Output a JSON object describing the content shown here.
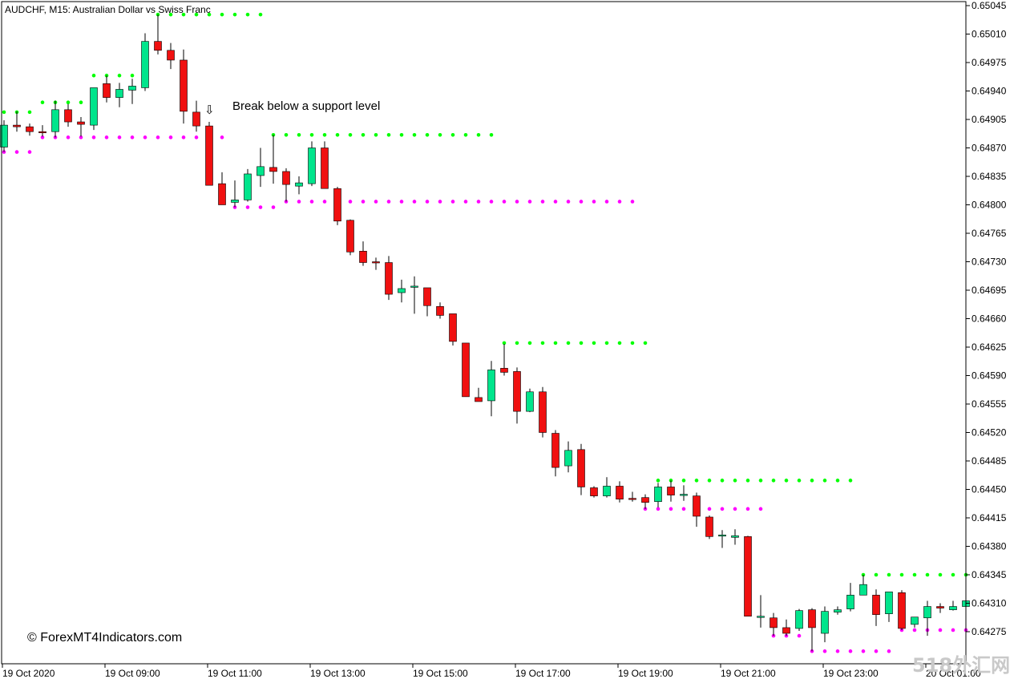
{
  "window": {
    "symbol_caption": "AUDCHF, M15:  Australian Dollar vs Swiss Franc",
    "annotation": "Break below a support level",
    "arrow_glyph": "⇩",
    "watermark": "© ForexMT4Indicators.com",
    "corner_brand": "518外汇网"
  },
  "colors": {
    "bull": "#00E58C",
    "bear": "#F01010",
    "wick": "#000000",
    "resistance": "#00FF00",
    "support": "#FF00FF",
    "frame": "#000000"
  },
  "chart_data": {
    "type": "candlestick",
    "ylim": [
      0.6425,
      0.6505
    ],
    "y_ticks": [
      "0.65045",
      "0.65010",
      "0.64975",
      "0.64940",
      "0.64905",
      "0.64870",
      "0.64835",
      "0.64800",
      "0.64765",
      "0.64730",
      "0.64695",
      "0.64660",
      "0.64625",
      "0.64590",
      "0.64555",
      "0.64520",
      "0.64485",
      "0.64450",
      "0.64415",
      "0.64380",
      "0.64345",
      "0.64310",
      "0.64275"
    ],
    "x_ticks": [
      {
        "bar": 0,
        "label": "19 Oct 2020"
      },
      {
        "bar": 8,
        "label": "19 Oct 09:00"
      },
      {
        "bar": 16,
        "label": "19 Oct 11:00"
      },
      {
        "bar": 24,
        "label": "19 Oct 13:00"
      },
      {
        "bar": 32,
        "label": "19 Oct 15:00"
      },
      {
        "bar": 40,
        "label": "19 Oct 17:00"
      },
      {
        "bar": 48,
        "label": "19 Oct 19:00"
      },
      {
        "bar": 56,
        "label": "19 Oct 21:00"
      },
      {
        "bar": 64,
        "label": "19 Oct 23:00"
      },
      {
        "bar": 72,
        "label": "20 Oct 01:00"
      }
    ],
    "candles": [
      {
        "o": 0.64871,
        "h": 0.64904,
        "l": 0.64865,
        "c": 0.64898
      },
      {
        "o": 0.64898,
        "h": 0.64915,
        "l": 0.6489,
        "c": 0.64896
      },
      {
        "o": 0.64896,
        "h": 0.649,
        "l": 0.64885,
        "c": 0.6489
      },
      {
        "o": 0.6489,
        "h": 0.64898,
        "l": 0.64884,
        "c": 0.64889
      },
      {
        "o": 0.6489,
        "h": 0.64928,
        "l": 0.64883,
        "c": 0.64917
      },
      {
        "o": 0.64917,
        "h": 0.64924,
        "l": 0.64896,
        "c": 0.64902
      },
      {
        "o": 0.64902,
        "h": 0.64908,
        "l": 0.64884,
        "c": 0.64899
      },
      {
        "o": 0.64898,
        "h": 0.64944,
        "l": 0.64892,
        "c": 0.64944
      },
      {
        "o": 0.64949,
        "h": 0.64959,
        "l": 0.64926,
        "c": 0.64932
      },
      {
        "o": 0.64932,
        "h": 0.6495,
        "l": 0.6492,
        "c": 0.64942
      },
      {
        "o": 0.64941,
        "h": 0.64955,
        "l": 0.64924,
        "c": 0.64946
      },
      {
        "o": 0.64944,
        "h": 0.65011,
        "l": 0.6494,
        "c": 0.65001
      },
      {
        "o": 0.65001,
        "h": 0.65034,
        "l": 0.64985,
        "c": 0.6499
      },
      {
        "o": 0.6499,
        "h": 0.64999,
        "l": 0.64967,
        "c": 0.64978
      },
      {
        "o": 0.64978,
        "h": 0.64991,
        "l": 0.649,
        "c": 0.64915
      },
      {
        "o": 0.64914,
        "h": 0.64928,
        "l": 0.6489,
        "c": 0.64897
      },
      {
        "o": 0.64897,
        "h": 0.64902,
        "l": 0.64825,
        "c": 0.64824
      },
      {
        "o": 0.64826,
        "h": 0.6484,
        "l": 0.648,
        "c": 0.648
      },
      {
        "o": 0.64803,
        "h": 0.6483,
        "l": 0.64797,
        "c": 0.64806
      },
      {
        "o": 0.64806,
        "h": 0.64844,
        "l": 0.64804,
        "c": 0.64838
      },
      {
        "o": 0.64836,
        "h": 0.6487,
        "l": 0.64822,
        "c": 0.64847
      },
      {
        "o": 0.64846,
        "h": 0.64886,
        "l": 0.64826,
        "c": 0.64841
      },
      {
        "o": 0.64841,
        "h": 0.64845,
        "l": 0.64804,
        "c": 0.64825
      },
      {
        "o": 0.64823,
        "h": 0.64835,
        "l": 0.64813,
        "c": 0.64827
      },
      {
        "o": 0.64826,
        "h": 0.64878,
        "l": 0.64823,
        "c": 0.6487
      },
      {
        "o": 0.6487,
        "h": 0.64878,
        "l": 0.6482,
        "c": 0.6482
      },
      {
        "o": 0.6482,
        "h": 0.64822,
        "l": 0.64775,
        "c": 0.6478
      },
      {
        "o": 0.64781,
        "h": 0.64782,
        "l": 0.64738,
        "c": 0.64742
      },
      {
        "o": 0.64743,
        "h": 0.64755,
        "l": 0.64725,
        "c": 0.64729
      },
      {
        "o": 0.6473,
        "h": 0.64735,
        "l": 0.6472,
        "c": 0.64729
      },
      {
        "o": 0.64729,
        "h": 0.64737,
        "l": 0.64683,
        "c": 0.6469
      },
      {
        "o": 0.64692,
        "h": 0.64708,
        "l": 0.6468,
        "c": 0.64697
      },
      {
        "o": 0.647,
        "h": 0.64712,
        "l": 0.64666,
        "c": 0.647
      },
      {
        "o": 0.64698,
        "h": 0.64698,
        "l": 0.64663,
        "c": 0.64676
      },
      {
        "o": 0.64675,
        "h": 0.6468,
        "l": 0.6466,
        "c": 0.64664
      },
      {
        "o": 0.64666,
        "h": 0.64665,
        "l": 0.64627,
        "c": 0.64632
      },
      {
        "o": 0.6463,
        "h": 0.6463,
        "l": 0.64564,
        "c": 0.64564
      },
      {
        "o": 0.64563,
        "h": 0.64575,
        "l": 0.6456,
        "c": 0.64558
      },
      {
        "o": 0.64559,
        "h": 0.64608,
        "l": 0.6454,
        "c": 0.64597
      },
      {
        "o": 0.64599,
        "h": 0.64629,
        "l": 0.6459,
        "c": 0.64594
      },
      {
        "o": 0.64595,
        "h": 0.646,
        "l": 0.64531,
        "c": 0.64546
      },
      {
        "o": 0.64546,
        "h": 0.64574,
        "l": 0.64545,
        "c": 0.6457
      },
      {
        "o": 0.6457,
        "h": 0.64576,
        "l": 0.64514,
        "c": 0.6452
      },
      {
        "o": 0.64519,
        "h": 0.64523,
        "l": 0.64466,
        "c": 0.64477
      },
      {
        "o": 0.64479,
        "h": 0.64509,
        "l": 0.64471,
        "c": 0.64498
      },
      {
        "o": 0.64499,
        "h": 0.64506,
        "l": 0.64443,
        "c": 0.64453
      },
      {
        "o": 0.64452,
        "h": 0.64454,
        "l": 0.6444,
        "c": 0.64442
      },
      {
        "o": 0.64442,
        "h": 0.64465,
        "l": 0.6444,
        "c": 0.64454
      },
      {
        "o": 0.64454,
        "h": 0.6446,
        "l": 0.64434,
        "c": 0.64438
      },
      {
        "o": 0.64439,
        "h": 0.64447,
        "l": 0.64435,
        "c": 0.64438
      },
      {
        "o": 0.6444,
        "h": 0.64444,
        "l": 0.64426,
        "c": 0.64434
      },
      {
        "o": 0.64435,
        "h": 0.64458,
        "l": 0.64428,
        "c": 0.64453
      },
      {
        "o": 0.64453,
        "h": 0.64461,
        "l": 0.64435,
        "c": 0.64443
      },
      {
        "o": 0.64443,
        "h": 0.64455,
        "l": 0.64436,
        "c": 0.64444
      },
      {
        "o": 0.64442,
        "h": 0.64446,
        "l": 0.64404,
        "c": 0.64417
      },
      {
        "o": 0.64416,
        "h": 0.64418,
        "l": 0.64389,
        "c": 0.64392
      },
      {
        "o": 0.64394,
        "h": 0.644,
        "l": 0.64378,
        "c": 0.64394
      },
      {
        "o": 0.64391,
        "h": 0.64401,
        "l": 0.64382,
        "c": 0.64393
      },
      {
        "o": 0.64392,
        "h": 0.64393,
        "l": 0.64294,
        "c": 0.64294
      },
      {
        "o": 0.64293,
        "h": 0.6432,
        "l": 0.6428,
        "c": 0.64294
      },
      {
        "o": 0.64292,
        "h": 0.64298,
        "l": 0.6427,
        "c": 0.6428
      },
      {
        "o": 0.6428,
        "h": 0.6429,
        "l": 0.6427,
        "c": 0.64273
      },
      {
        "o": 0.64279,
        "h": 0.64303,
        "l": 0.64276,
        "c": 0.64301
      },
      {
        "o": 0.64302,
        "h": 0.64304,
        "l": 0.64251,
        "c": 0.6428
      },
      {
        "o": 0.64273,
        "h": 0.64306,
        "l": 0.64262,
        "c": 0.643
      },
      {
        "o": 0.64299,
        "h": 0.64306,
        "l": 0.64296,
        "c": 0.64302
      },
      {
        "o": 0.64303,
        "h": 0.64335,
        "l": 0.643,
        "c": 0.6432
      },
      {
        "o": 0.6432,
        "h": 0.64345,
        "l": 0.6432,
        "c": 0.64333
      },
      {
        "o": 0.6432,
        "h": 0.64327,
        "l": 0.64282,
        "c": 0.64296
      },
      {
        "o": 0.64297,
        "h": 0.64324,
        "l": 0.64287,
        "c": 0.64324
      },
      {
        "o": 0.64323,
        "h": 0.64326,
        "l": 0.64277,
        "c": 0.64279
      },
      {
        "o": 0.64284,
        "h": 0.64293,
        "l": 0.6428,
        "c": 0.64293
      },
      {
        "o": 0.64292,
        "h": 0.64313,
        "l": 0.6427,
        "c": 0.64306
      },
      {
        "o": 0.64306,
        "h": 0.6431,
        "l": 0.64298,
        "c": 0.64304
      },
      {
        "o": 0.64302,
        "h": 0.64313,
        "l": 0.64301,
        "c": 0.64306
      },
      {
        "o": 0.64306,
        "h": 0.64325,
        "l": 0.64303,
        "c": 0.64313
      }
    ],
    "resistance_levels": [
      {
        "value": 0.64914,
        "from": 0,
        "to": 2
      },
      {
        "value": 0.64926,
        "from": 3,
        "to": 6
      },
      {
        "value": 0.64959,
        "from": 7,
        "to": 11
      },
      {
        "value": 0.65034,
        "from": 12,
        "to": 20
      },
      {
        "value": 0.64886,
        "from": 21,
        "to": 38
      },
      {
        "value": 0.6463,
        "from": 39,
        "to": 50
      },
      {
        "value": 0.64461,
        "from": 51,
        "to": 66
      },
      {
        "value": 0.64345,
        "from": 67,
        "to": 75
      }
    ],
    "support_levels": [
      {
        "value": 0.64865,
        "from": 0,
        "to": 2
      },
      {
        "value": 0.64883,
        "from": 3,
        "to": 17
      },
      {
        "value": 0.64797,
        "from": 18,
        "to": 21
      },
      {
        "value": 0.64804,
        "from": 22,
        "to": 49
      },
      {
        "value": 0.64426,
        "from": 50,
        "to": 59
      },
      {
        "value": 0.6427,
        "from": 60,
        "to": 62
      },
      {
        "value": 0.64251,
        "from": 63,
        "to": 69
      },
      {
        "value": 0.64277,
        "from": 70,
        "to": 75
      }
    ],
    "annotation_bar": 16
  }
}
